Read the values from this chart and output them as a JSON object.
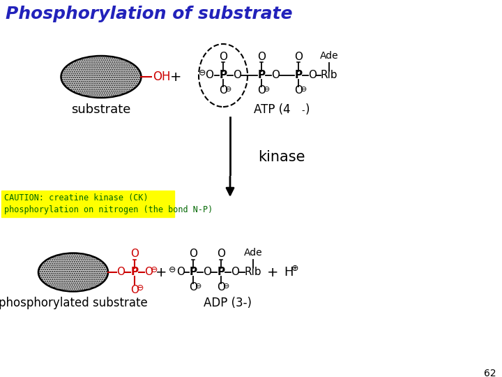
{
  "title": "Phosphorylation of substrate",
  "title_color": "#2222BB",
  "title_fontsize": 18,
  "background_color": "#ffffff",
  "page_number": "62",
  "caution_text_line1": "CAUTION: creatine kinase (CK)",
  "caution_text_line2": "phosphorylation on nitrogen (the bond N-P)",
  "caution_bg": "#FFFF00",
  "caution_text_color": "#006600",
  "substrate_label": "substrate",
  "phospho_substrate_label": "phosphorylated substrate",
  "atp_label": "ATP (4",
  "atp_charge": "-",
  "adp_label": "ADP (3-)",
  "kinase_label": "kinase",
  "red_color": "#CC0000",
  "black_color": "#000000"
}
